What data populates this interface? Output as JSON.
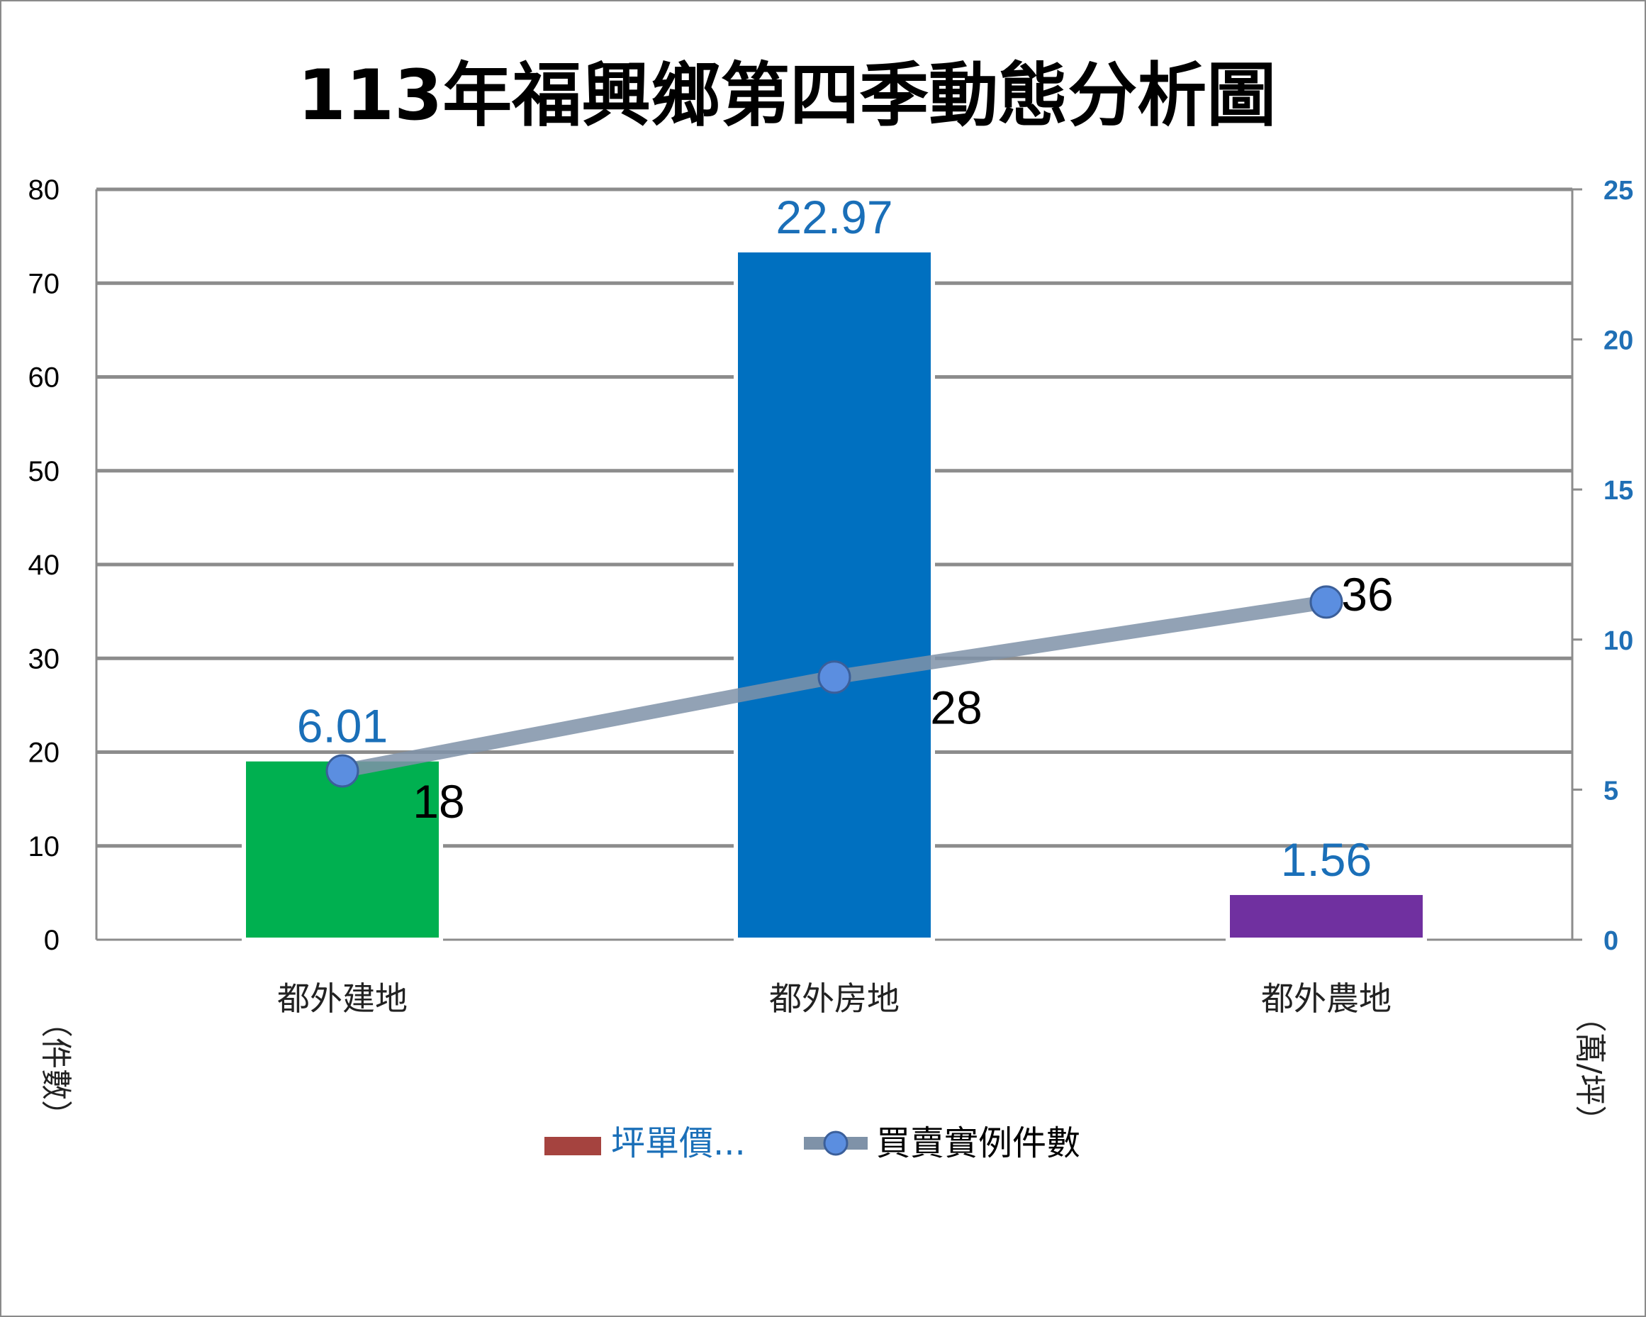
{
  "chart_data": {
    "type": "bar",
    "title": "113年福興鄉第四季動態分析圖",
    "categories": [
      "都外建地",
      "都外房地",
      "都外農地"
    ],
    "series": [
      {
        "name": "坪單價...",
        "type": "bar",
        "axis": "right",
        "values": [
          6.01,
          22.97,
          1.56
        ],
        "value_labels": [
          "6.01",
          "22.97",
          "1.56"
        ],
        "colors": [
          "#00b050",
          "#0070c0",
          "#7030a0"
        ],
        "legend_color": "#a5433f"
      },
      {
        "name": "買賣實例件數",
        "type": "line",
        "axis": "left",
        "values": [
          18,
          28,
          36
        ],
        "value_labels": [
          "18",
          "28",
          "36"
        ],
        "line_color": "#7f92a8",
        "marker_color": "#5b8ee0"
      }
    ],
    "y_left": {
      "label": "（件數）",
      "range": [
        0,
        80
      ],
      "ticks": [
        "0",
        "10",
        "20",
        "30",
        "40",
        "50",
        "60",
        "70",
        "80"
      ]
    },
    "y_right": {
      "label": "（萬/坪）",
      "range": [
        0,
        25
      ],
      "ticks": [
        "0",
        "5",
        "10",
        "15",
        "20",
        "25"
      ]
    },
    "grid": true,
    "legend": "bottom"
  }
}
